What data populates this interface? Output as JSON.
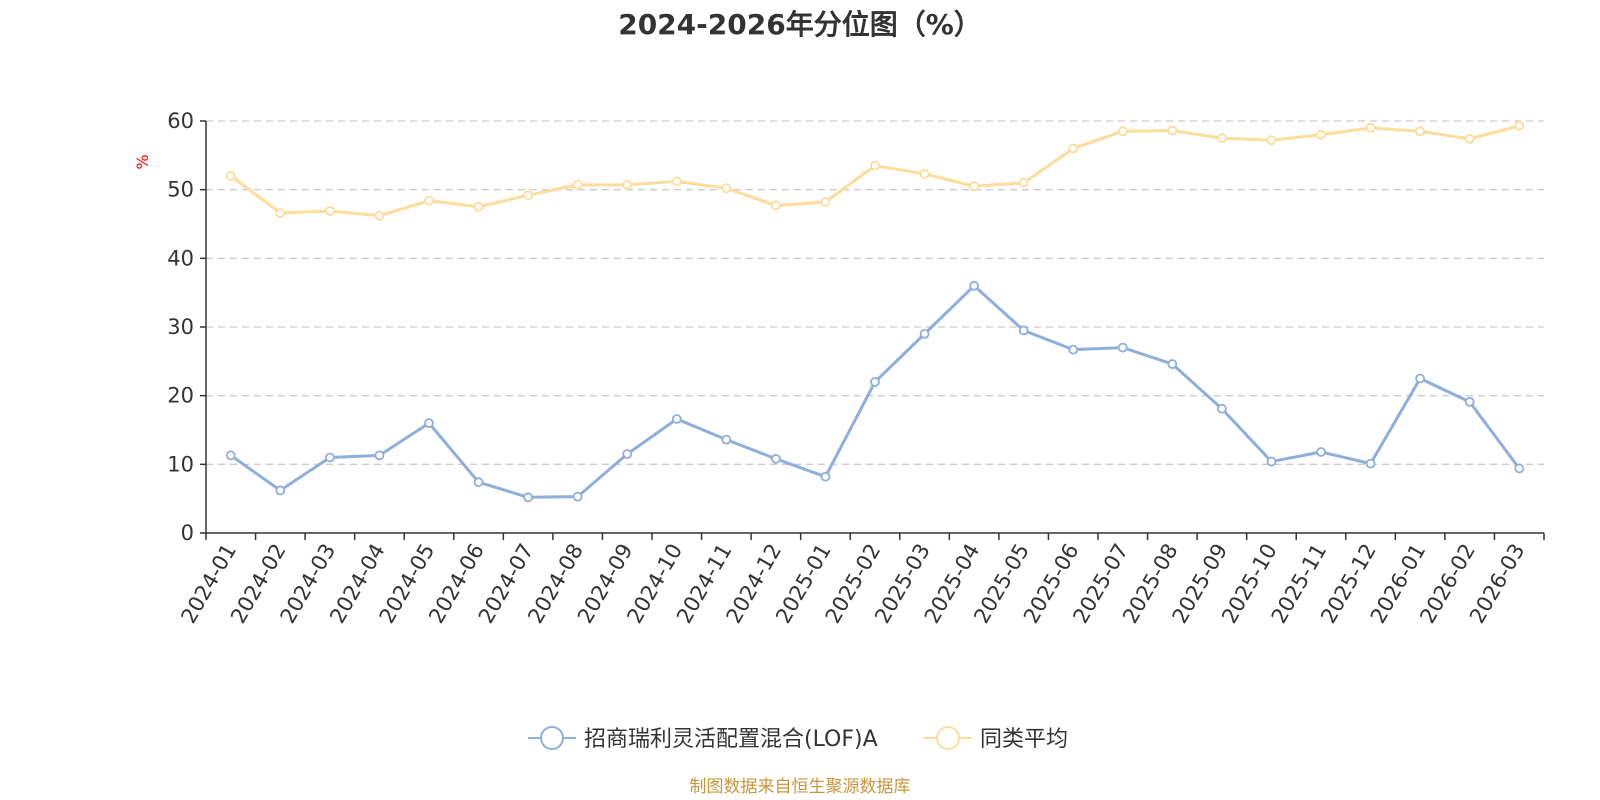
{
  "chart_data": {
    "type": "line",
    "title": "2024-2026年分位图（%）",
    "ylabel": "%",
    "xlabel": "",
    "ylim": [
      0,
      60
    ],
    "yticks": [
      0,
      10,
      20,
      30,
      40,
      50,
      60
    ],
    "grid": true,
    "legend_position": "bottom-center",
    "categories": [
      "2024-01",
      "2024-02",
      "2024-03",
      "2024-04",
      "2024-05",
      "2024-06",
      "2024-07",
      "2024-08",
      "2024-09",
      "2024-10",
      "2024-11",
      "2024-12",
      "2025-01",
      "2025-02",
      "2025-03",
      "2025-04",
      "2025-05",
      "2025-06",
      "2025-07",
      "2025-08",
      "2025-09",
      "2025-10",
      "2025-11",
      "2025-12",
      "2026-01",
      "2026-02",
      "2026-03"
    ],
    "series": [
      {
        "name": "招商瑞利灵活配置混合(LOF)A",
        "color": "#8eaedc",
        "values": [
          11.3,
          6.2,
          11.0,
          11.3,
          16.0,
          7.4,
          5.2,
          5.3,
          11.5,
          16.6,
          13.6,
          10.8,
          8.2,
          22.0,
          29.0,
          36.0,
          29.5,
          26.7,
          27.0,
          24.6,
          18.1,
          10.4,
          11.8,
          10.1,
          22.5,
          19.1,
          9.4
        ]
      },
      {
        "name": "同类平均",
        "color": "#fedc9b",
        "values": [
          52.0,
          46.6,
          46.9,
          46.2,
          48.4,
          47.5,
          49.2,
          50.7,
          50.7,
          51.2,
          50.2,
          47.7,
          48.2,
          53.5,
          52.3,
          50.5,
          51.0,
          56.0,
          58.5,
          58.6,
          57.5,
          57.2,
          58.0,
          59.0,
          58.5,
          57.4,
          59.3
        ]
      }
    ],
    "axis_color": "#333333",
    "grid_color": "#cccccc",
    "unit_color": "#ff0000"
  },
  "source": {
    "text": "制图数据来自恒生聚源数据库",
    "color": "#c8963c"
  }
}
